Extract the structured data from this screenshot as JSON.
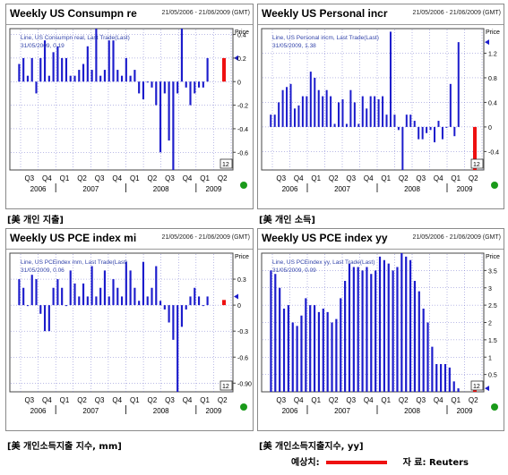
{
  "panels": [
    {
      "title": "Weekly US Consumpn re",
      "dates": "21/05/2006 - 21/06/2009 (GMT)",
      "info_line1": "Line, US Consumpn real, Last Trade(Last)",
      "info_line2": "31/05/2009, 0.19",
      "caption": "[美 개인 지출]",
      "badge": "12",
      "price_label": "Price"
    },
    {
      "title": "Weekly US Personal incr",
      "dates": "21/05/2006 - 21/06/2009 (GMT)",
      "info_line1": "Line, US Personal incm, Last Trade(Last)",
      "info_line2": "31/05/2009, 1.38",
      "caption": "[美 개인 소득]",
      "badge": "12",
      "price_label": "Price"
    },
    {
      "title": "Weekly US PCE index mi",
      "dates": "21/05/2006 - 21/06/2009 (GMT)",
      "info_line1": "Line, US PCEindex mm, Last Trade(Last)",
      "info_line2": "31/05/2009, 0.06",
      "caption": "[美 개인소득지출 지수, mm]",
      "badge": "12",
      "price_label": "Price"
    },
    {
      "title": "Weekly US PCE index yy",
      "dates": "21/05/2006 - 21/06/2009 (GMT)",
      "info_line1": "Line, US PCEindex yy, Last Trade(Last)",
      "info_line2": "31/05/2009, 0.09",
      "caption": "[美 개인소득지출지수, yy]",
      "badge": "12",
      "price_label": "Price"
    }
  ],
  "footer": {
    "forecast_label": "예상치:",
    "source_label": "자 료: Reuters"
  },
  "colors": {
    "bar": "#1c1ccc",
    "forecast": "#ee1111",
    "grid": "#7777cc",
    "status_dot": "#1a9a1a"
  },
  "chart_data": [
    {
      "type": "bar",
      "title": "Weekly US Consumpn re",
      "ylabel": "Price",
      "ylim": [
        -0.75,
        0.45
      ],
      "yticks": [
        0.4,
        0.2,
        0,
        -0.2,
        -0.4,
        -0.6
      ],
      "quarter_labels": [
        "Q3",
        "Q4",
        "Q1",
        "Q2",
        "Q3",
        "Q4",
        "Q1",
        "Q2",
        "Q3",
        "Q4",
        "Q1",
        "Q2"
      ],
      "year_labels": [
        "2006",
        "2007",
        "2008",
        "2009"
      ],
      "grid": true,
      "series": [
        {
          "values": [
            0.15,
            0.2,
            0.05,
            0.2,
            -0.1,
            0.2,
            0.35,
            0.05,
            0.25,
            0.3,
            0.2,
            0.2,
            0.05,
            0.05,
            0.1,
            0.15,
            0.3,
            0.1,
            0.45,
            0.05,
            0.1,
            0.35,
            0.35,
            0.1,
            0.05,
            0.2,
            0.05,
            0.1,
            -0.1,
            -0.15,
            0.0,
            -0.05,
            -0.2,
            -0.6,
            -0.1,
            -0.5,
            -0.75,
            -0.1,
            0.45,
            -0.05,
            -0.2,
            -0.1,
            -0.05,
            -0.05,
            0.2
          ]
        },
        {
          "name": "forecast",
          "values": [
            0.2
          ]
        }
      ]
    },
    {
      "type": "bar",
      "title": "Weekly US Personal incr",
      "ylabel": "Price",
      "ylim": [
        -0.7,
        1.6
      ],
      "yticks": [
        1.2,
        0.8,
        0.4,
        0,
        -0.4
      ],
      "quarter_labels": [
        "Q3",
        "Q4",
        "Q1",
        "Q2",
        "Q3",
        "Q4",
        "Q1",
        "Q2",
        "Q3",
        "Q4",
        "Q1",
        "Q2"
      ],
      "year_labels": [
        "2006",
        "2007",
        "2008",
        "2009"
      ],
      "grid": true,
      "series": [
        {
          "values": [
            0.2,
            0.2,
            0.4,
            0.6,
            0.65,
            0.7,
            0.3,
            0.35,
            0.5,
            0.5,
            0.9,
            0.8,
            0.6,
            0.5,
            0.6,
            0.5,
            0.05,
            0.4,
            0.45,
            0.05,
            0.6,
            0.4,
            0.05,
            0.5,
            0.3,
            0.5,
            0.5,
            0.45,
            0.5,
            0.2,
            1.55,
            0.2,
            -0.05,
            -0.7,
            0.2,
            0.2,
            0.1,
            -0.2,
            -0.2,
            -0.1,
            -0.05,
            -0.25,
            0.1,
            -0.2,
            0.0,
            0.7,
            -0.15,
            1.38
          ]
        },
        {
          "name": "forecast",
          "values": [
            -0.7
          ]
        }
      ]
    },
    {
      "type": "bar",
      "title": "Weekly US PCE index mi",
      "ylabel": "Price",
      "ylim": [
        -1.0,
        0.6
      ],
      "yticks": [
        0.3,
        0,
        -0.3,
        -0.6,
        -0.9
      ],
      "quarter_labels": [
        "Q3",
        "Q4",
        "Q1",
        "Q2",
        "Q3",
        "Q4",
        "Q1",
        "Q2",
        "Q3",
        "Q4",
        "Q1",
        "Q2"
      ],
      "year_labels": [
        "2006",
        "2007",
        "2008",
        "2009"
      ],
      "grid": true,
      "series": [
        {
          "values": [
            0.3,
            0.2,
            0.0,
            0.35,
            0.3,
            -0.1,
            -0.3,
            -0.3,
            0.2,
            0.3,
            0.2,
            0.0,
            0.4,
            0.25,
            0.1,
            0.25,
            0.1,
            0.45,
            0.1,
            0.2,
            0.4,
            0.1,
            0.3,
            0.2,
            0.1,
            0.5,
            0.4,
            0.2,
            0.05,
            0.5,
            0.1,
            0.2,
            0.45,
            0.05,
            -0.05,
            -0.2,
            -0.4,
            -1.0,
            -0.25,
            -0.05,
            0.1,
            0.2,
            0.1,
            0.0,
            0.1
          ]
        },
        {
          "name": "forecast",
          "values": [
            0.06
          ]
        }
      ]
    },
    {
      "type": "bar",
      "title": "Weekly US PCE index yy",
      "ylabel": "Price",
      "ylim": [
        0,
        4.0
      ],
      "yticks": [
        3.5,
        3,
        2.5,
        2,
        1.5,
        1,
        0.5
      ],
      "quarter_labels": [
        "Q3",
        "Q4",
        "Q1",
        "Q2",
        "Q3",
        "Q4",
        "Q1",
        "Q2",
        "Q3",
        "Q4",
        "Q1",
        "Q2"
      ],
      "year_labels": [
        "2006",
        "2007",
        "2008",
        "2009"
      ],
      "grid": true,
      "series": [
        {
          "values": [
            3.5,
            3.4,
            3.0,
            2.4,
            2.5,
            2.0,
            1.9,
            2.2,
            2.7,
            2.5,
            2.5,
            2.3,
            2.4,
            2.3,
            2.0,
            2.1,
            2.7,
            3.2,
            3.7,
            3.6,
            3.6,
            3.5,
            3.6,
            3.4,
            3.5,
            3.9,
            3.8,
            3.7,
            3.5,
            3.6,
            4.0,
            3.9,
            3.8,
            3.2,
            2.9,
            2.4,
            2.0,
            1.3,
            0.8,
            0.8,
            0.8,
            0.7,
            0.3,
            0.1
          ]
        },
        {
          "name": "forecast",
          "values": [
            0.09
          ]
        }
      ]
    }
  ]
}
